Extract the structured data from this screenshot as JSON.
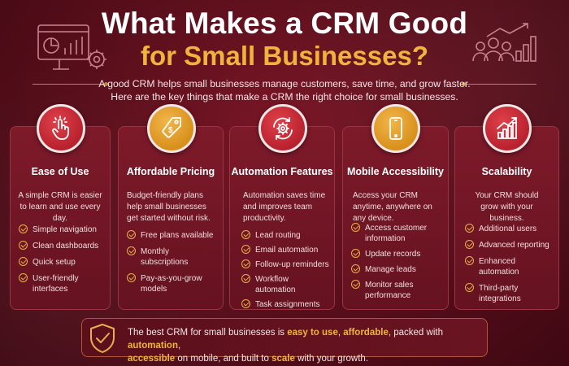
{
  "header": {
    "title_line1": "What Makes a CRM Good",
    "title_line2": "for Small Businesses?",
    "intro_line1": "A good CRM helps small businesses manage customers, save time, and grow faster.",
    "intro_line2": "Here are the key things that make a CRM the right choice for small businesses."
  },
  "icons": {
    "dashboard": "dashboard-gear-icon",
    "team_growth": "team-growth-chart-icon",
    "shield": "shield-check-icon"
  },
  "colors": {
    "background": "#5c0f1c",
    "accent_gold": "#f0b43c",
    "icon_red": "#b8222e",
    "icon_gold": "#d8901c"
  },
  "cards": [
    {
      "title": "Ease of Use",
      "icon": "tap-hand-icon",
      "desc": "A simple CRM is easier to learn and use every day.",
      "items": [
        "Simple navigation",
        "Clean dashboards",
        "Quick setup",
        "User-friendly interfaces"
      ]
    },
    {
      "title": "Affordable Pricing",
      "icon": "price-tag-icon",
      "desc": "Budget-friendly plans help small businesses get started without risk.",
      "items": [
        "Free plans available",
        "Monthly subscriptions",
        "Pay-as-you-grow models"
      ]
    },
    {
      "title": "Automation Features",
      "icon": "gear-cycle-icon",
      "desc": "Automation saves time and improves team productivity.",
      "items": [
        "Lead routing",
        "Email automation",
        "Follow-up reminders",
        "Workflow automation",
        "Task assignments"
      ]
    },
    {
      "title": "Mobile Accessibility",
      "icon": "smartphone-icon",
      "desc": "Access your CRM anytime, anywhere on any device.",
      "items": [
        "Access customer information",
        "Update records",
        "Manage leads",
        "Monitor sales performance"
      ]
    },
    {
      "title": "Scalability",
      "icon": "growth-chart-icon",
      "desc": "Your CRM should grow with your business.",
      "items": [
        "Additional users",
        "Advanced reporting",
        "Enhanced automation",
        "Third-party integrations"
      ]
    }
  ],
  "footer": {
    "t1": "The best CRM for small businesses is ",
    "h1": "easy to use",
    "t2": ", ",
    "h2": "affordable",
    "t3": ", packed with ",
    "h3": "automation",
    "t4": ",",
    "h4": "accessible",
    "t5": " on mobile, and built to ",
    "h5": "scale",
    "t6": " with your growth."
  }
}
